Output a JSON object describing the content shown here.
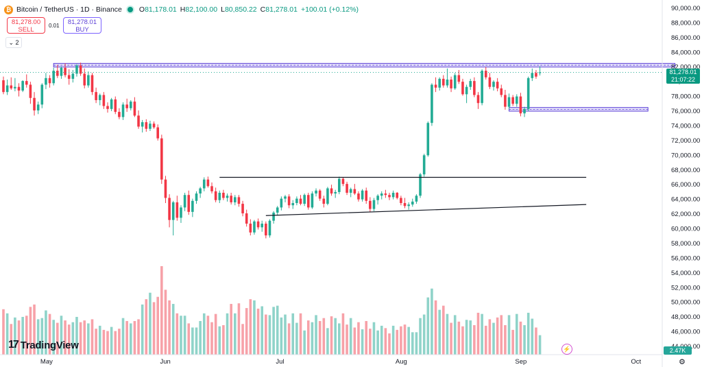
{
  "header": {
    "coin_symbol": "₿",
    "title": "Bitcoin / TetherUS · 1D · Binance",
    "ohlc": [
      {
        "label": "O",
        "value": "81,178.01"
      },
      {
        "label": "H",
        "value": "82,100.00"
      },
      {
        "label": "L",
        "value": "80,850.22"
      },
      {
        "label": "C",
        "value": "81,278.01"
      }
    ],
    "change": "+100.01 (+0.12%)"
  },
  "trade": {
    "sell_price": "81,278.00",
    "sell_label": "SELL",
    "spread": "0.01",
    "buy_price": "81,278.01",
    "buy_label": "BUY"
  },
  "indicator_toggle": "2",
  "logo_text": "TradingView",
  "logo_mark": "17",
  "last_price_tag": {
    "price": "81,278.01",
    "countdown": "21:07:22"
  },
  "volume_tag": "2.47K",
  "colors": {
    "up": "#22ab94",
    "down": "#f23645",
    "vol_up": "#8fd3c9",
    "vol_down": "#f7a1a8",
    "rect": "#5b3fd6"
  },
  "chart_data": {
    "type": "candlestick",
    "y_ticks": [
      "90,000.00",
      "88,000.00",
      "86,000.00",
      "84,000.00",
      "82,000.00",
      "80,000.00",
      "78,000.00",
      "76,000.00",
      "74,000.00",
      "72,000.00",
      "70,000.00",
      "68,000.00",
      "66,000.00",
      "64,000.00",
      "62,000.00",
      "60,000.00",
      "58,000.00",
      "56,000.00",
      "54,000.00",
      "52,000.00",
      "50,000.00",
      "48,000.00",
      "46,000.00",
      "44,000.00"
    ],
    "x_ticks": [
      "May",
      "Jun",
      "Jul",
      "Aug",
      "Sep",
      "Oct"
    ],
    "ylim": [
      43000,
      90500
    ],
    "start_date": "2024-04-20",
    "ohlc": [
      [
        80200,
        80700,
        78300,
        78600
      ],
      [
        78600,
        80300,
        78200,
        79500
      ],
      [
        79500,
        80600,
        78900,
        79100
      ],
      [
        79100,
        80500,
        78700,
        79300
      ],
      [
        79300,
        79800,
        78000,
        78800
      ],
      [
        78800,
        80200,
        78600,
        80100
      ],
      [
        80100,
        81000,
        79200,
        79600
      ],
      [
        79600,
        80000,
        77000,
        77800
      ],
      [
        77800,
        78600,
        75400,
        76100
      ],
      [
        76100,
        77300,
        75600,
        76900
      ],
      [
        76900,
        79800,
        76400,
        79600
      ],
      [
        79600,
        81200,
        79000,
        80500
      ],
      [
        80500,
        80900,
        79200,
        79800
      ],
      [
        79800,
        81900,
        79500,
        81500
      ],
      [
        81500,
        82300,
        80500,
        80800
      ],
      [
        80800,
        82100,
        80400,
        81900
      ],
      [
        81900,
        82500,
        80600,
        80900
      ],
      [
        80900,
        81700,
        79600,
        80400
      ],
      [
        80400,
        81600,
        79900,
        81100
      ],
      [
        81100,
        82400,
        80700,
        82200
      ],
      [
        82200,
        82600,
        80800,
        81100
      ],
      [
        81100,
        81800,
        79100,
        79500
      ],
      [
        79500,
        81400,
        79200,
        80900
      ],
      [
        80900,
        81200,
        78200,
        78600
      ],
      [
        78600,
        79200,
        77100,
        77500
      ],
      [
        77500,
        78400,
        76800,
        78200
      ],
      [
        78200,
        78600,
        76300,
        76700
      ],
      [
        76700,
        77200,
        75800,
        76300
      ],
      [
        76300,
        77800,
        76000,
        77600
      ],
      [
        77600,
        78000,
        75600,
        75900
      ],
      [
        75900,
        76400,
        74900,
        75200
      ],
      [
        75200,
        77200,
        74800,
        76900
      ],
      [
        76900,
        77700,
        75900,
        76400
      ],
      [
        76400,
        77500,
        76100,
        77300
      ],
      [
        77300,
        77900,
        75200,
        75400
      ],
      [
        75400,
        76100,
        73600,
        73900
      ],
      [
        73900,
        74800,
        73100,
        74500
      ],
      [
        74500,
        74900,
        73200,
        73600
      ],
      [
        73600,
        74700,
        73300,
        74300
      ],
      [
        74300,
        74600,
        73600,
        73800
      ],
      [
        73800,
        74200,
        72000,
        72300
      ],
      [
        72300,
        72800,
        66100,
        66700
      ],
      [
        66700,
        67200,
        63500,
        64200
      ],
      [
        64200,
        64700,
        60200,
        61200
      ],
      [
        61200,
        63800,
        59100,
        63600
      ],
      [
        63600,
        64500,
        61100,
        61500
      ],
      [
        61500,
        63200,
        60800,
        62900
      ],
      [
        62900,
        64900,
        62400,
        64600
      ],
      [
        64600,
        65200,
        61900,
        62300
      ],
      [
        62300,
        64100,
        61600,
        63800
      ],
      [
        63800,
        65100,
        63400,
        64800
      ],
      [
        64800,
        65700,
        64200,
        65500
      ],
      [
        65500,
        67000,
        65100,
        66700
      ],
      [
        66700,
        67100,
        65600,
        65800
      ],
      [
        65800,
        66300,
        64800,
        65100
      ],
      [
        65100,
        65600,
        63600,
        63900
      ],
      [
        63900,
        65200,
        63500,
        64900
      ],
      [
        64900,
        65300,
        63900,
        64200
      ],
      [
        64200,
        64800,
        63700,
        64500
      ],
      [
        64500,
        64900,
        63300,
        63600
      ],
      [
        63600,
        64600,
        63200,
        64300
      ],
      [
        64300,
        64600,
        63000,
        63400
      ],
      [
        63400,
        63800,
        61700,
        62100
      ],
      [
        62100,
        62600,
        60300,
        60700
      ],
      [
        60700,
        61300,
        59100,
        59500
      ],
      [
        59500,
        61200,
        59200,
        61000
      ],
      [
        61000,
        61400,
        59900,
        60200
      ],
      [
        60200,
        61100,
        59600,
        60700
      ],
      [
        60700,
        61000,
        58700,
        59100
      ],
      [
        59100,
        61300,
        58800,
        61100
      ],
      [
        61100,
        62400,
        60700,
        62200
      ],
      [
        62200,
        63100,
        61800,
        62900
      ],
      [
        62900,
        64400,
        62500,
        64100
      ],
      [
        64100,
        64600,
        63600,
        64400
      ],
      [
        64400,
        64700,
        62800,
        63200
      ],
      [
        63200,
        63900,
        62700,
        63500
      ],
      [
        63500,
        64400,
        63200,
        64100
      ],
      [
        64100,
        64600,
        63200,
        63400
      ],
      [
        63400,
        64800,
        63100,
        64600
      ],
      [
        64600,
        64900,
        62600,
        62900
      ],
      [
        62900,
        65100,
        62700,
        64800
      ],
      [
        64800,
        65500,
        64400,
        65200
      ],
      [
        65200,
        65400,
        63800,
        64100
      ],
      [
        64100,
        64500,
        62900,
        63400
      ],
      [
        63400,
        65700,
        63200,
        65500
      ],
      [
        65500,
        66000,
        64500,
        64800
      ],
      [
        64800,
        65300,
        64200,
        65000
      ],
      [
        65000,
        67100,
        64700,
        66800
      ],
      [
        66800,
        67000,
        65800,
        66100
      ],
      [
        66100,
        66400,
        64600,
        64900
      ],
      [
        64900,
        65600,
        64300,
        65400
      ],
      [
        65400,
        66100,
        64600,
        64800
      ],
      [
        64800,
        65100,
        63700,
        64000
      ],
      [
        64000,
        65400,
        63700,
        65200
      ],
      [
        65200,
        65600,
        63400,
        63800
      ],
      [
        63800,
        64300,
        62300,
        62700
      ],
      [
        62700,
        64200,
        62400,
        63900
      ],
      [
        63900,
        64700,
        63300,
        64500
      ],
      [
        64500,
        65100,
        64000,
        64800
      ],
      [
        64800,
        65300,
        64200,
        64600
      ],
      [
        64600,
        64900,
        63900,
        64300
      ],
      [
        64300,
        65200,
        64000,
        64900
      ],
      [
        64900,
        65000,
        64000,
        64200
      ],
      [
        64200,
        64500,
        63200,
        63500
      ],
      [
        63500,
        64200,
        62800,
        63100
      ],
      [
        63100,
        63600,
        62600,
        63300
      ],
      [
        63300,
        64100,
        63000,
        63700
      ],
      [
        63700,
        64700,
        63400,
        64500
      ],
      [
        64500,
        67600,
        64200,
        67400
      ],
      [
        67400,
        70200,
        67100,
        70000
      ],
      [
        70000,
        74600,
        69800,
        74400
      ],
      [
        74400,
        79800,
        74000,
        79600
      ],
      [
        79600,
        80600,
        78600,
        79200
      ],
      [
        79200,
        80600,
        78800,
        80400
      ],
      [
        80400,
        80900,
        79200,
        79500
      ],
      [
        79500,
        81800,
        79200,
        80300
      ],
      [
        80300,
        80700,
        78600,
        79100
      ],
      [
        79100,
        81200,
        78900,
        80900
      ],
      [
        80900,
        81600,
        79700,
        80000
      ],
      [
        80000,
        80400,
        78100,
        78300
      ],
      [
        78300,
        79600,
        77100,
        79300
      ],
      [
        79300,
        80400,
        78900,
        80100
      ],
      [
        80100,
        80600,
        77900,
        78200
      ],
      [
        78200,
        78600,
        76300,
        77100
      ],
      [
        77100,
        81700,
        76800,
        81500
      ],
      [
        81500,
        82000,
        80300,
        80600
      ],
      [
        80600,
        81200,
        79000,
        79300
      ],
      [
        79300,
        80200,
        78800,
        80000
      ],
      [
        80000,
        80500,
        78700,
        79100
      ],
      [
        79100,
        79600,
        77900,
        78200
      ],
      [
        78200,
        78900,
        76200,
        76600
      ],
      [
        76600,
        78400,
        76300,
        77900
      ],
      [
        77900,
        78200,
        76700,
        77000
      ],
      [
        77000,
        78300,
        76600,
        78000
      ],
      [
        78000,
        78500,
        75300,
        75700
      ],
      [
        75700,
        76600,
        75200,
        76300
      ],
      [
        76300,
        80700,
        76000,
        80500
      ],
      [
        80500,
        81800,
        80100,
        81200
      ],
      [
        81200,
        81600,
        80400,
        80700
      ],
      [
        81178,
        82100,
        80850,
        81278
      ]
    ],
    "volumes": [
      7.7,
      7.0,
      5.2,
      6.3,
      5.8,
      6.4,
      6.6,
      8.1,
      8.5,
      6.0,
      6.2,
      7.5,
      6.9,
      5.9,
      5.4,
      6.6,
      5.8,
      5.1,
      5.5,
      6.4,
      5.5,
      5.8,
      5.3,
      6.0,
      4.4,
      4.9,
      4.2,
      4.0,
      4.7,
      4.0,
      4.4,
      6.2,
      5.7,
      5.3,
      5.7,
      6.0,
      8.5,
      9.4,
      10.5,
      8.9,
      9.8,
      15.0,
      11.0,
      9.2,
      8.6,
      7.0,
      6.6,
      6.6,
      5.3,
      4.6,
      4.6,
      5.7,
      7.0,
      6.6,
      5.5,
      6.9,
      4.8,
      5.0,
      7.0,
      8.6,
      7.0,
      8.7,
      5.2,
      7.9,
      9.4,
      9.2,
      7.8,
      8.2,
      6.8,
      6.7,
      8.1,
      8.3,
      6.3,
      6.8,
      5.3,
      7.0,
      5.4,
      7.0,
      4.1,
      5.8,
      5.5,
      6.7,
      5.7,
      6.2,
      4.5,
      6.5,
      6.2,
      5.3,
      7.0,
      5.1,
      6.2,
      4.6,
      5.5,
      4.3,
      5.7,
      4.4,
      5.5,
      4.1,
      4.9,
      4.5,
      3.6,
      4.9,
      4.2,
      4.8,
      5.1,
      4.7,
      3.8,
      3.8,
      6.2,
      6.8,
      9.7,
      11.2,
      9.2,
      7.6,
      8.3,
      6.9,
      5.4,
      6.7,
      5.6,
      4.8,
      5.9,
      5.8,
      5.0,
      7.1,
      6.9,
      4.9,
      6.0,
      5.4,
      6.3,
      6.7,
      5.0,
      6.7,
      4.2,
      6.9,
      5.6,
      5.0,
      7.1,
      6.1,
      4.6,
      3.3
    ],
    "lines": [
      {
        "name": "resistance",
        "from": [
          56,
          67000
        ],
        "to": [
          151,
          67000
        ]
      },
      {
        "name": "support",
        "from": [
          68,
          61800
        ],
        "to": [
          151,
          63300
        ]
      }
    ],
    "zones": [
      {
        "from_idx": 13,
        "to_idx": 174,
        "y_top": 82500,
        "y_bottom": 82000
      },
      {
        "from_idx": 131,
        "to_idx": 167,
        "y_top": 76500,
        "y_bottom": 76000
      }
    ]
  }
}
